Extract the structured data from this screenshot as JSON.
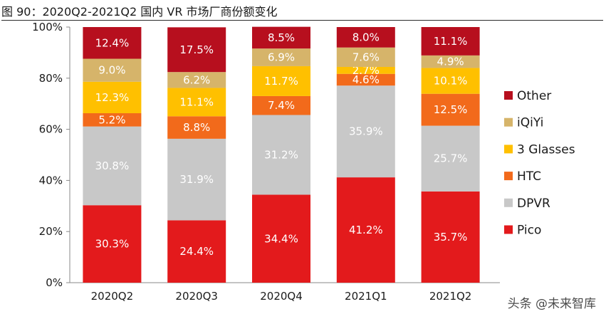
{
  "title": "图 90：2020Q2-2021Q2 国内 VR 市场厂商份额变化",
  "watermark": "头条 @未来智库",
  "chart_data": {
    "type": "bar",
    "stacked": true,
    "categories": [
      "2020Q2",
      "2020Q3",
      "2020Q4",
      "2021Q1",
      "2021Q2"
    ],
    "ylim": [
      0,
      100
    ],
    "yticks": [
      "0%",
      "20%",
      "40%",
      "60%",
      "80%",
      "100%"
    ],
    "legend_position": "right",
    "series": [
      {
        "name": "Pico",
        "color": "#e31a1c",
        "values": [
          30.3,
          24.4,
          34.4,
          41.2,
          35.7
        ],
        "labels": [
          "30.3%",
          "24.4%",
          "34.4%",
          "41.2%",
          "35.7%"
        ]
      },
      {
        "name": "DPVR",
        "color": "#c8c8c8",
        "values": [
          30.8,
          31.9,
          31.2,
          35.9,
          25.7
        ],
        "labels": [
          "30.8%",
          "31.9%",
          "31.2%",
          "35.9%",
          "25.7%"
        ]
      },
      {
        "name": "HTC",
        "color": "#f26a1b",
        "values": [
          5.2,
          8.8,
          7.4,
          4.6,
          12.5
        ],
        "labels": [
          "5.2%",
          "8.8%",
          "7.4%",
          "4.6%",
          "12.5%"
        ]
      },
      {
        "name": "3 Glasses",
        "color": "#ffc000",
        "values": [
          12.3,
          11.1,
          11.7,
          2.7,
          10.1
        ],
        "labels": [
          "12.3%",
          "11.1%",
          "11.7%",
          "2.7%",
          "10.1%"
        ]
      },
      {
        "name": "iQiYi",
        "color": "#d6b46a",
        "values": [
          9.0,
          6.2,
          6.9,
          7.6,
          4.9
        ],
        "labels": [
          "9.0%",
          "6.2%",
          "6.9%",
          "7.6%",
          "4.9%"
        ]
      },
      {
        "name": "Other",
        "color": "#b70f1e",
        "values": [
          12.4,
          17.5,
          8.5,
          8.0,
          11.1
        ],
        "labels": [
          "12.4%",
          "17.5%",
          "8.5%",
          "8.0%",
          "11.1%"
        ]
      }
    ]
  }
}
